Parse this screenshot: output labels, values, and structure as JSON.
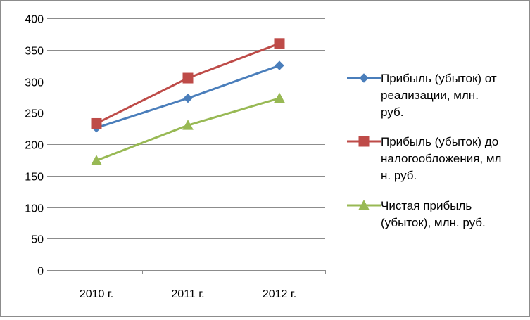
{
  "chart_data": {
    "type": "line",
    "categories": [
      "2010 г.",
      "2011 г.",
      "2012 г."
    ],
    "y_ticks": [
      "0",
      "50",
      "100",
      "150",
      "200",
      "250",
      "300",
      "350",
      "400"
    ],
    "ylim": [
      0,
      400
    ],
    "grid": true,
    "legend_position": "right",
    "series": [
      {
        "name": "Прибыль (убыток) от реализации, млн. руб.",
        "legend_lines": [
          "Прибыль (убыток) от",
          "реализации, млн.",
          "руб."
        ],
        "values": [
          226,
          273,
          325
        ],
        "color": "#4a7ebb",
        "marker": "diamond"
      },
      {
        "name": "Прибыль (убыток) до налогообложения, млн. руб.",
        "legend_lines": [
          "Прибыль (убыток) до",
          "налогообложения, мл",
          "н. руб."
        ],
        "values": [
          233,
          305,
          360
        ],
        "color": "#be4b48",
        "marker": "square"
      },
      {
        "name": "Чистая прибыль (убыток), млн. руб.",
        "legend_lines": [
          "Чистая прибыль",
          "(убыток), млн. руб."
        ],
        "values": [
          174,
          230,
          273
        ],
        "color": "#98b954",
        "marker": "triangle"
      }
    ]
  }
}
